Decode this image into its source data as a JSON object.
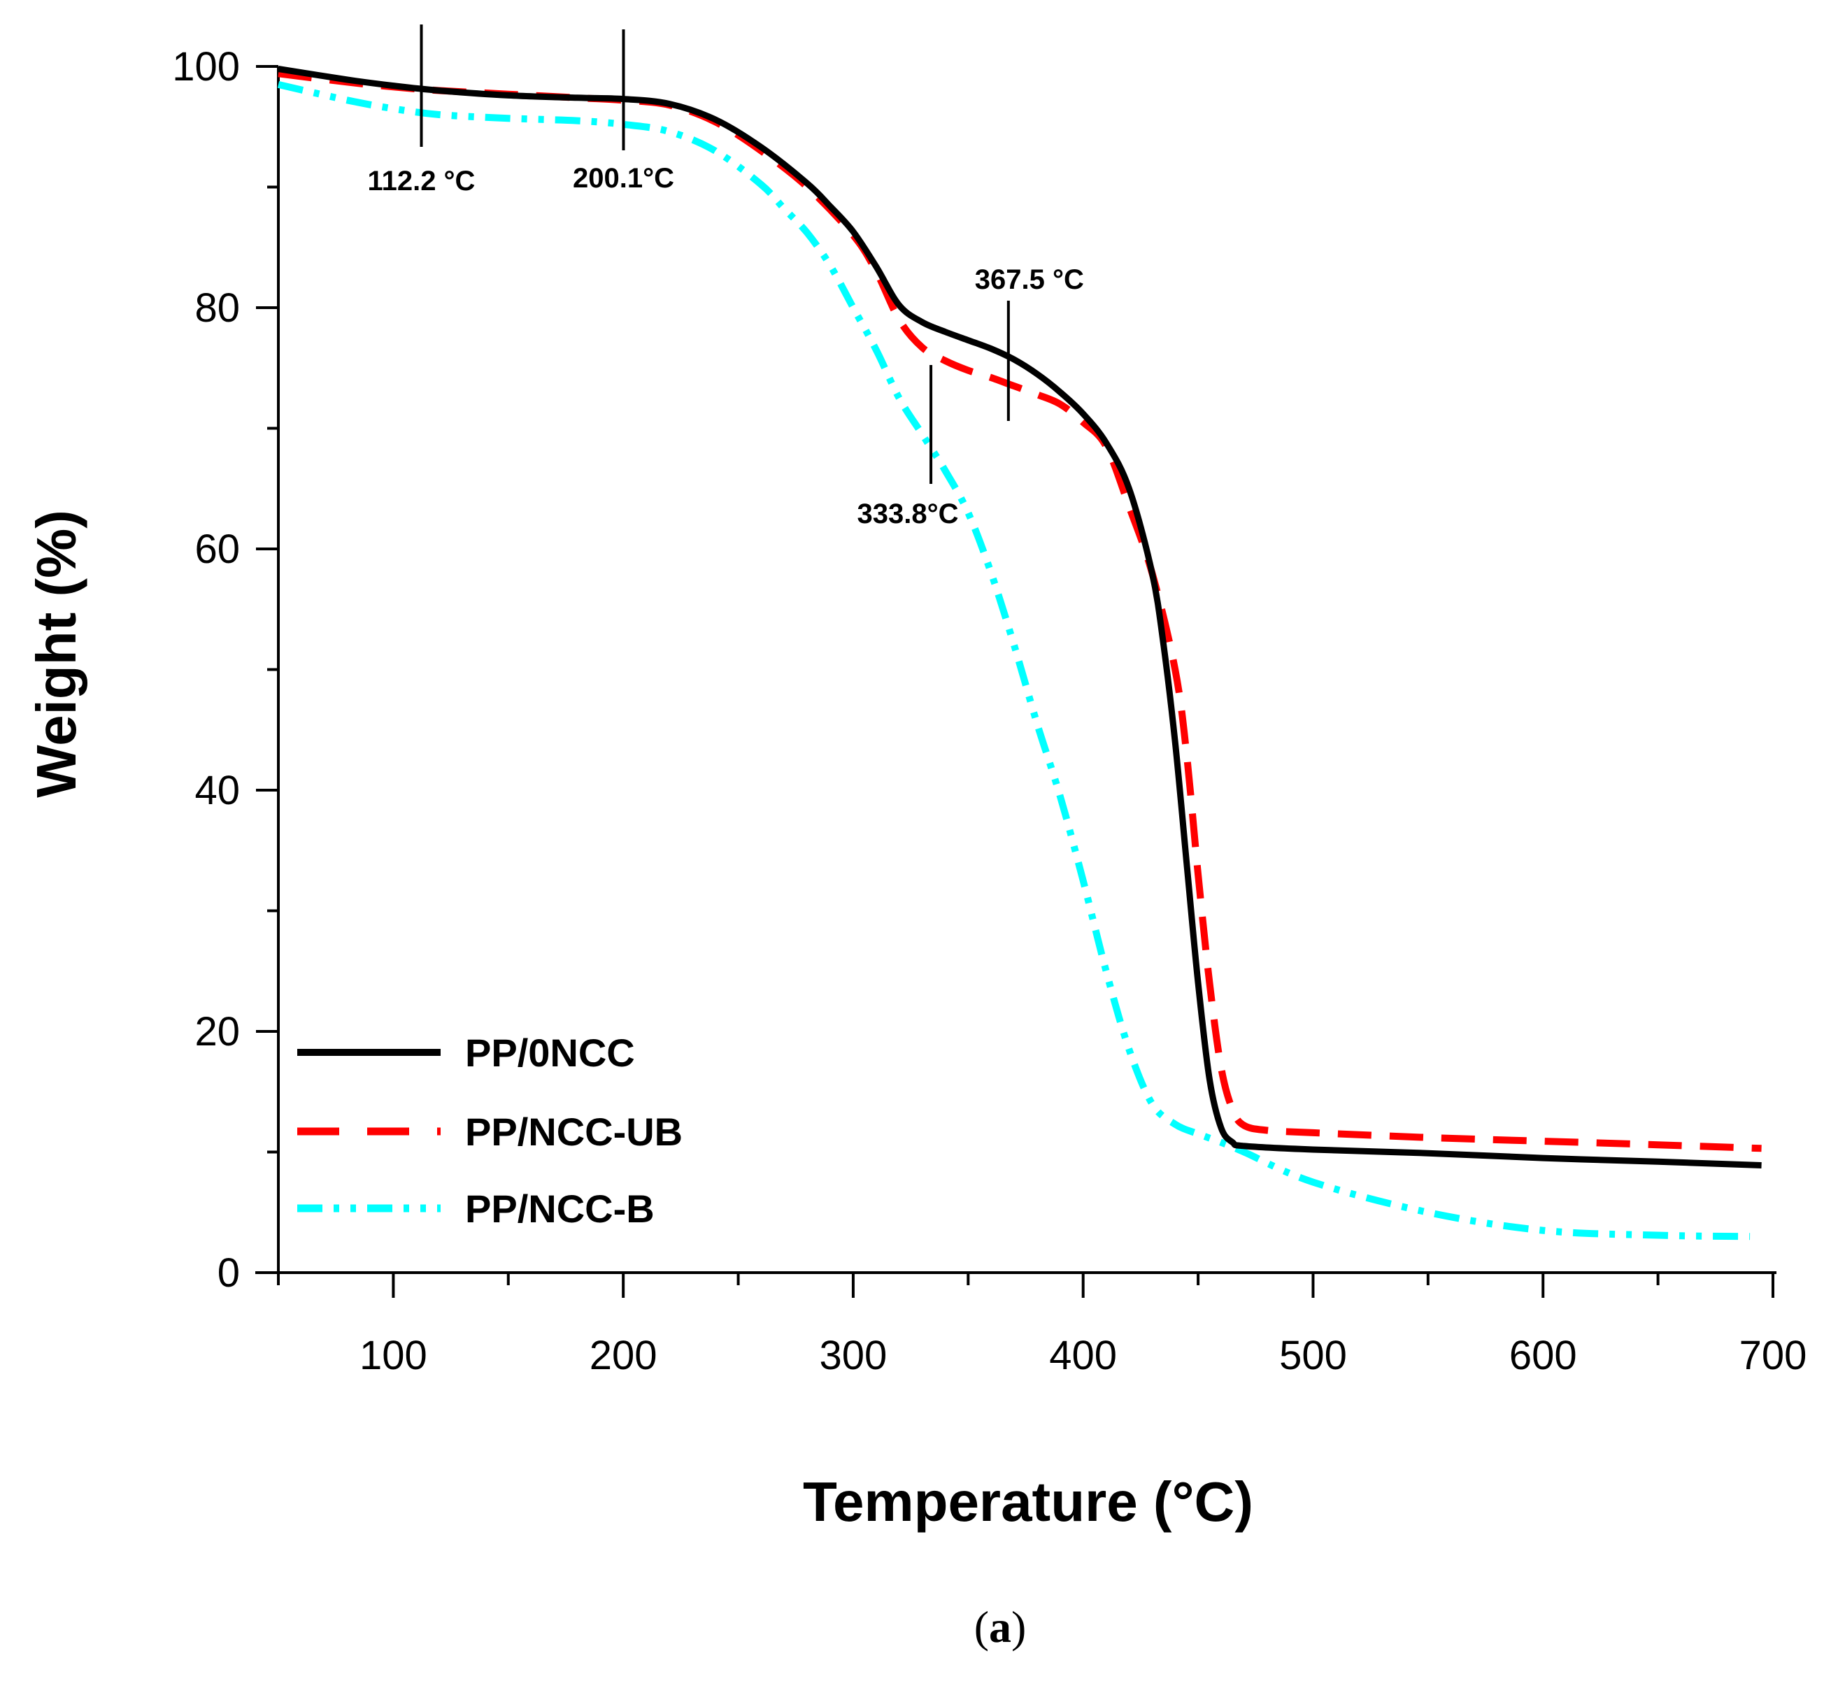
{
  "chart_data": {
    "type": "line",
    "xlabel": "Temperature (°C)",
    "ylabel": "Weight (%)",
    "xlim": [
      50,
      700
    ],
    "ylim": [
      0,
      100
    ],
    "xticks": [
      100,
      200,
      300,
      400,
      500,
      600,
      700
    ],
    "yticks": [
      0,
      20,
      40,
      60,
      80,
      100
    ],
    "grid": false,
    "legend_position": "bottom-left",
    "series": [
      {
        "name": "PP/0NCC",
        "color": "#000000",
        "style": "solid",
        "x": [
          50,
          80,
          100,
          120,
          150,
          180,
          200,
          220,
          240,
          260,
          280,
          290,
          300,
          310,
          320,
          330,
          340,
          350,
          360,
          370,
          380,
          390,
          400,
          410,
          420,
          430,
          435,
          440,
          445,
          450,
          455,
          460,
          465,
          470,
          500,
          550,
          600,
          650,
          695
        ],
        "y": [
          99.8,
          98.9,
          98.4,
          98.0,
          97.6,
          97.4,
          97.3,
          96.9,
          95.6,
          93.3,
          90.3,
          88.4,
          86.3,
          83.4,
          80.2,
          78.8,
          78.0,
          77.3,
          76.6,
          75.7,
          74.5,
          73.0,
          71.2,
          68.8,
          65.0,
          58.0,
          52.0,
          44.0,
          34.0,
          24.0,
          16.0,
          12.0,
          10.8,
          10.5,
          10.2,
          9.9,
          9.5,
          9.2,
          8.9
        ]
      },
      {
        "name": "PP/NCC-UB",
        "color": "#ff0000",
        "style": "dash",
        "x": [
          50,
          80,
          100,
          120,
          150,
          180,
          200,
          220,
          240,
          260,
          280,
          300,
          310,
          320,
          330,
          340,
          350,
          360,
          370,
          380,
          390,
          400,
          410,
          420,
          430,
          440,
          445,
          450,
          455,
          460,
          465,
          470,
          480,
          500,
          550,
          600,
          650,
          695
        ],
        "y": [
          99.4,
          98.7,
          98.3,
          98.0,
          97.7,
          97.4,
          97.2,
          96.8,
          95.4,
          93.0,
          90.0,
          86.0,
          83.0,
          79.0,
          76.7,
          75.6,
          74.8,
          74.2,
          73.5,
          72.8,
          72.0,
          70.5,
          68.5,
          63.5,
          58.0,
          50.0,
          43.0,
          33.0,
          24.0,
          17.0,
          13.5,
          12.2,
          11.8,
          11.6,
          11.2,
          10.9,
          10.6,
          10.3
        ]
      },
      {
        "name": "PP/NCC-B",
        "color": "#00ffff",
        "style": "dash-dot-dot",
        "x": [
          50,
          80,
          100,
          120,
          150,
          180,
          200,
          220,
          240,
          260,
          270,
          280,
          290,
          300,
          310,
          320,
          330,
          340,
          350,
          360,
          370,
          380,
          390,
          400,
          410,
          420,
          430,
          440,
          450,
          460,
          470,
          500,
          550,
          600,
          650,
          690
        ],
        "y": [
          98.5,
          97.2,
          96.5,
          96.0,
          95.7,
          95.5,
          95.2,
          94.6,
          93.0,
          90.2,
          88.2,
          86.2,
          83.5,
          80.0,
          76.5,
          72.5,
          69.5,
          66.5,
          63.0,
          58.0,
          52.0,
          45.5,
          39.5,
          32.5,
          25.0,
          18.5,
          14.0,
          12.3,
          11.5,
          10.8,
          10.0,
          7.5,
          5.0,
          3.5,
          3.1,
          3.0
        ]
      }
    ],
    "annotations": [
      {
        "text": "112.2 °C",
        "x": 112.2
      },
      {
        "text": "200.1°C",
        "x": 200.1
      },
      {
        "text": "333.8°C",
        "x": 333.8
      },
      {
        "text": "367.5 °C",
        "x": 367.5
      }
    ],
    "caption_open": "(",
    "caption_letter": "a",
    "caption_close": ")"
  }
}
